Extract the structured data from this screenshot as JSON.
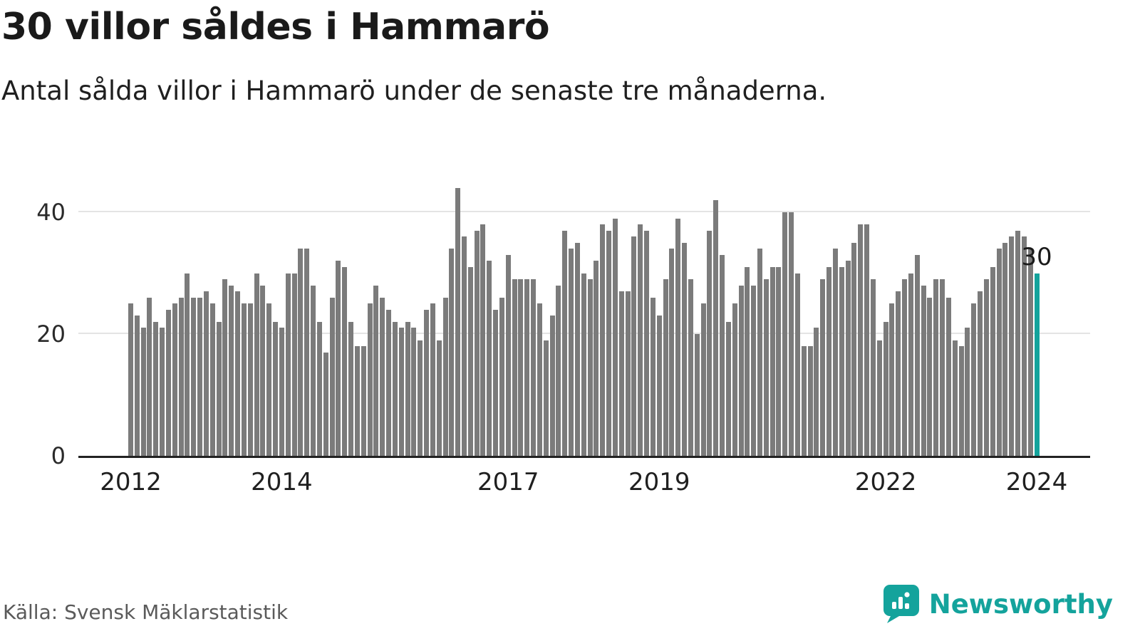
{
  "header": {
    "title": "30 villor såldes i Hammarö",
    "subtitle": "Antal sålda villor i Hammarö under de senaste tre månaderna."
  },
  "footer": {
    "source": "Källa: Svensk Mäklarstatistik",
    "brand": "Newsworthy"
  },
  "accent_color": "#14a39c",
  "chart_data": {
    "type": "bar",
    "title": "30 villor såldes i Hammarö",
    "subtitle": "Antal sålda villor i Hammarö under de senaste tre månaderna.",
    "xlabel": "",
    "ylabel": "",
    "x_start": "2012-01",
    "x_end": "2024-01",
    "x_frequency": "monthly",
    "values": [
      25,
      23,
      21,
      26,
      22,
      21,
      24,
      25,
      26,
      30,
      26,
      26,
      27,
      25,
      22,
      29,
      28,
      27,
      25,
      25,
      30,
      28,
      25,
      22,
      21,
      30,
      30,
      34,
      34,
      28,
      22,
      17,
      26,
      32,
      31,
      22,
      18,
      18,
      25,
      28,
      26,
      24,
      22,
      21,
      22,
      21,
      19,
      24,
      25,
      19,
      26,
      34,
      44,
      36,
      31,
      37,
      38,
      32,
      24,
      26,
      33,
      29,
      29,
      29,
      29,
      25,
      19,
      23,
      28,
      37,
      34,
      35,
      30,
      29,
      32,
      38,
      37,
      39,
      27,
      27,
      36,
      38,
      37,
      26,
      23,
      29,
      34,
      39,
      35,
      29,
      20,
      25,
      37,
      42,
      33,
      22,
      25,
      28,
      31,
      28,
      34,
      29,
      31,
      31,
      40,
      40,
      30,
      18,
      18,
      21,
      29,
      31,
      34,
      31,
      32,
      35,
      38,
      38,
      29,
      19,
      22,
      25,
      27,
      29,
      30,
      33,
      28,
      26,
      29,
      29,
      26,
      19,
      18,
      21,
      25,
      27,
      29,
      31,
      34,
      35,
      36,
      37,
      36,
      34,
      30
    ],
    "highlight_last": true,
    "highlight_value": 30,
    "annotation": "30",
    "bar_color": "#7b7b7b",
    "highlight_color": "#14a39c",
    "ylim": [
      0,
      48
    ],
    "grid": "horizontal",
    "y_ticks": [
      {
        "label": "0",
        "value": 0
      },
      {
        "label": "20",
        "value": 20
      },
      {
        "label": "40",
        "value": 40
      }
    ],
    "x_ticks": [
      {
        "label": "2012",
        "index": 0
      },
      {
        "label": "2014",
        "index": 24
      },
      {
        "label": "2017",
        "index": 60
      },
      {
        "label": "2019",
        "index": 84
      },
      {
        "label": "2022",
        "index": 120
      },
      {
        "label": "2024",
        "index": 144
      }
    ]
  }
}
